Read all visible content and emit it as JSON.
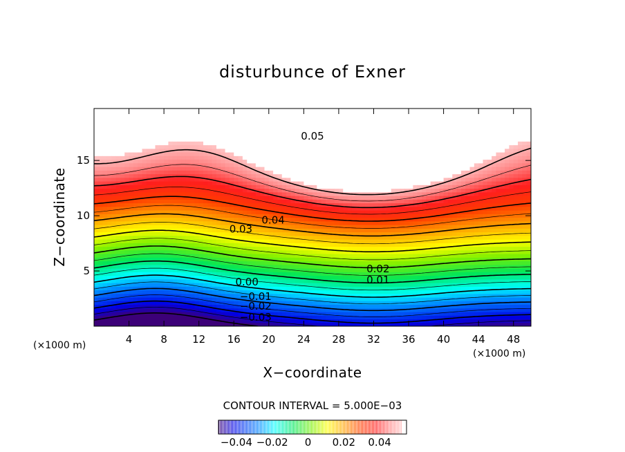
{
  "chart_data": {
    "type": "heatmap",
    "title": "disturbunce of Exner",
    "xlabel": "X−coordinate",
    "ylabel": "Z−coordinate",
    "x_unit_left": "(×1000 m)",
    "x_unit_right": "(×1000 m)",
    "xlim": [
      0,
      50
    ],
    "ylim": [
      0,
      19.7
    ],
    "x_ticks": [
      4,
      8,
      12,
      16,
      20,
      24,
      28,
      32,
      36,
      40,
      44,
      48
    ],
    "x_tick_labels": [
      "4",
      "8",
      "12",
      "16",
      "20",
      "24",
      "28",
      "32",
      "36",
      "40",
      "44",
      "48"
    ],
    "y_ticks": [
      5,
      10,
      15
    ],
    "y_tick_labels": [
      "5",
      "10",
      "15"
    ],
    "contour_interval_text": "CONTOUR INTERVAL = 5.000E−03",
    "value_range": [
      -0.05,
      0.055
    ],
    "colorbar": {
      "ticks": [
        -0.04,
        -0.02,
        0,
        0.02,
        0.04
      ],
      "tick_labels": [
        "−0.04",
        "−0.02",
        "0",
        "0.02",
        "0.04"
      ]
    },
    "contour_labels": [
      {
        "text": "0.05",
        "x": 25,
        "y": 17.2
      },
      {
        "text": "0.04",
        "x": 20.5,
        "y": 9.6
      },
      {
        "text": "0.03",
        "x": 16.8,
        "y": 8.8
      },
      {
        "text": "0.02",
        "x": 32.5,
        "y": 5.2
      },
      {
        "text": "0.01",
        "x": 32.5,
        "y": 4.2
      },
      {
        "text": "0.00",
        "x": 17.5,
        "y": 4.0
      },
      {
        "text": "−0.01",
        "x": 18.5,
        "y": 2.7
      },
      {
        "text": "−0.02",
        "x": 18.5,
        "y": 1.8
      },
      {
        "text": "−0.03",
        "x": 18.5,
        "y": 0.8
      }
    ]
  }
}
